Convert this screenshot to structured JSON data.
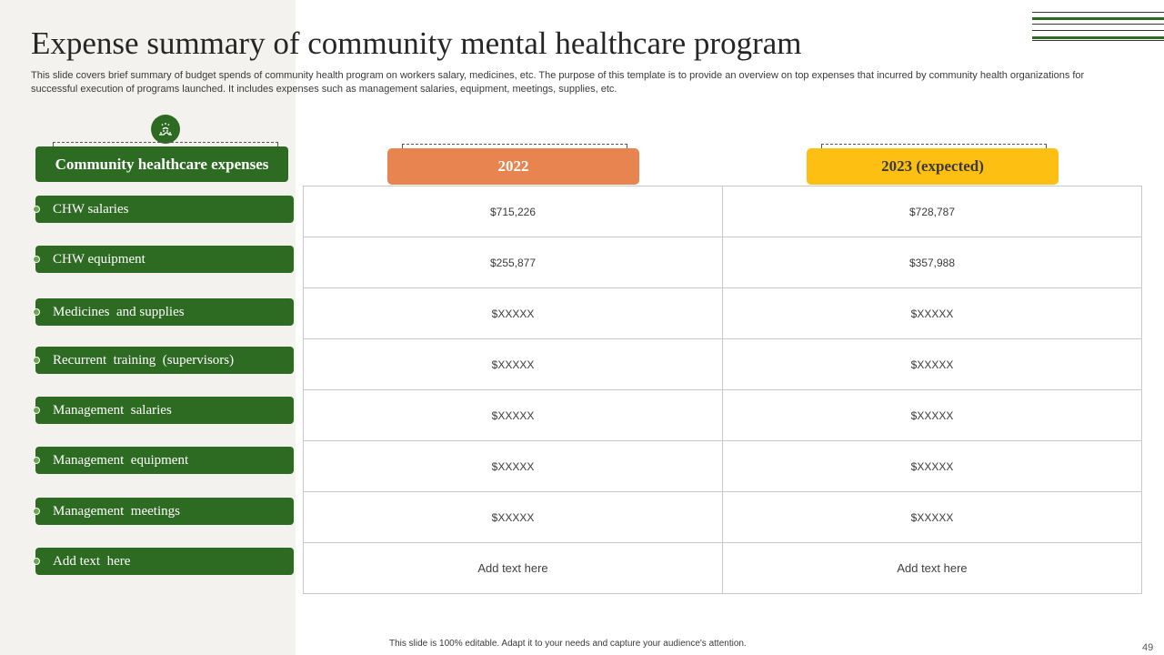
{
  "slide": {
    "title": "Expense summary of community mental healthcare program",
    "subtitle": "This slide covers brief summary of budget spends of community health program on workers salary, medicines, etc. The purpose of this template is to provide an overview on top expenses that incurred by community health organizations for successful execution of programs launched. It includes expenses such as management salaries, equipment, meetings, supplies, etc.",
    "footer": "This slide is 100% editable. Adapt it to your needs and capture your audience's attention.",
    "page_number": "49"
  },
  "table": {
    "row_header": "Community healthcare expenses",
    "col_2022": "2022",
    "col_2023": "2023 (expected)",
    "rows": [
      {
        "label": "CHW salaries",
        "v2022": "$715,226",
        "v2023": "$728,787"
      },
      {
        "label": "CHW equipment",
        "v2022": "$255,877",
        "v2023": "$357,988"
      },
      {
        "label": "Medicines  and supplies",
        "v2022": "$XXXXX",
        "v2023": "$XXXXX"
      },
      {
        "label": "Recurrent  training  (supervisors)",
        "v2022": "$XXXXX",
        "v2023": "$XXXXX"
      },
      {
        "label": "Management  salaries",
        "v2022": "$XXXXX",
        "v2023": "$XXXXX"
      },
      {
        "label": "Management  equipment",
        "v2022": "$XXXXX",
        "v2023": "$XXXXX"
      },
      {
        "label": "Management  meetings",
        "v2022": "$XXXXX",
        "v2023": "$XXXXX"
      },
      {
        "label": "Add text  here",
        "v2022": "Add text here",
        "v2023": "Add text here"
      }
    ]
  },
  "icons": {
    "header_icon": "healthcare-hands-icon"
  },
  "colors": {
    "green": "#2e6b22",
    "orange": "#e8844f",
    "yellow": "#fdbf12",
    "panel": "#f3f2ee"
  }
}
